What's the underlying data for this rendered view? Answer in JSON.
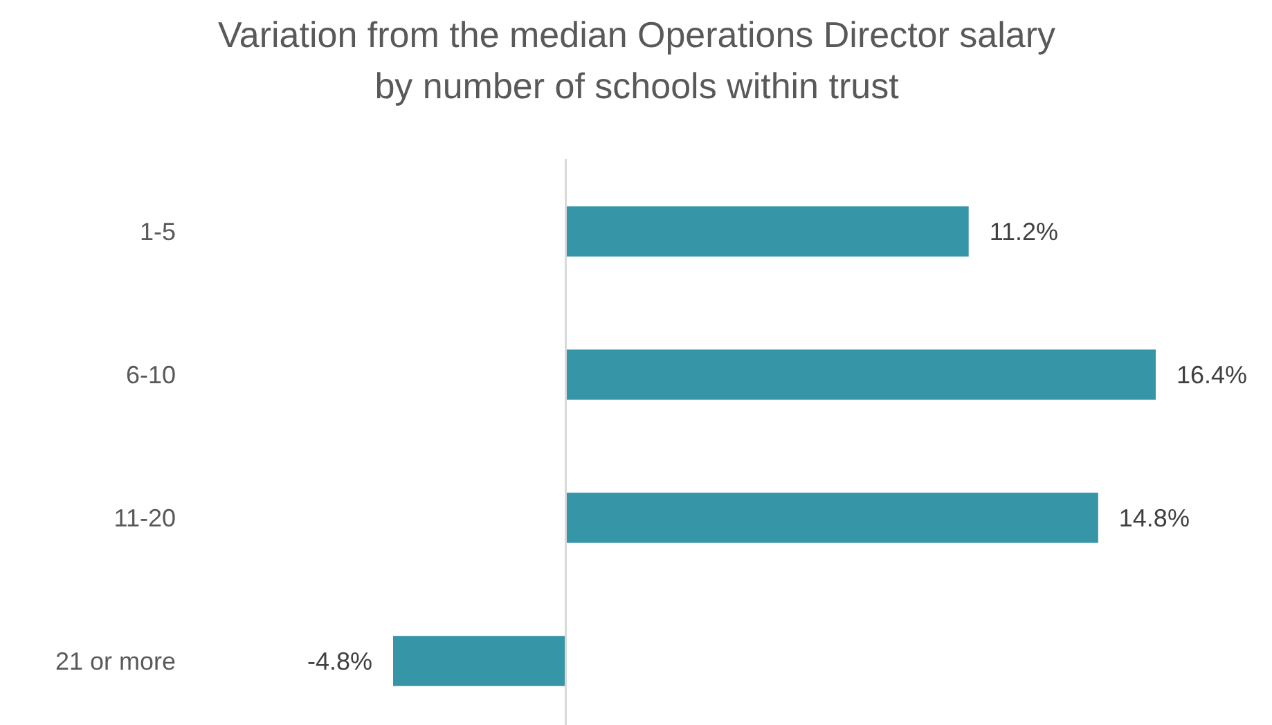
{
  "chart_data": {
    "type": "bar",
    "orientation": "horizontal",
    "relative": false,
    "title": "Variation from the median Operations Director salary\nby number of schools within trust",
    "categories": [
      "1-5",
      "6-10",
      "11-20",
      "21 or more"
    ],
    "values": [
      11.2,
      16.4,
      14.8,
      -4.8
    ],
    "value_labels": [
      "11.2%",
      "16.4%",
      "14.8%",
      "-4.8%"
    ],
    "color": "#3795a8",
    "grid": false
  }
}
